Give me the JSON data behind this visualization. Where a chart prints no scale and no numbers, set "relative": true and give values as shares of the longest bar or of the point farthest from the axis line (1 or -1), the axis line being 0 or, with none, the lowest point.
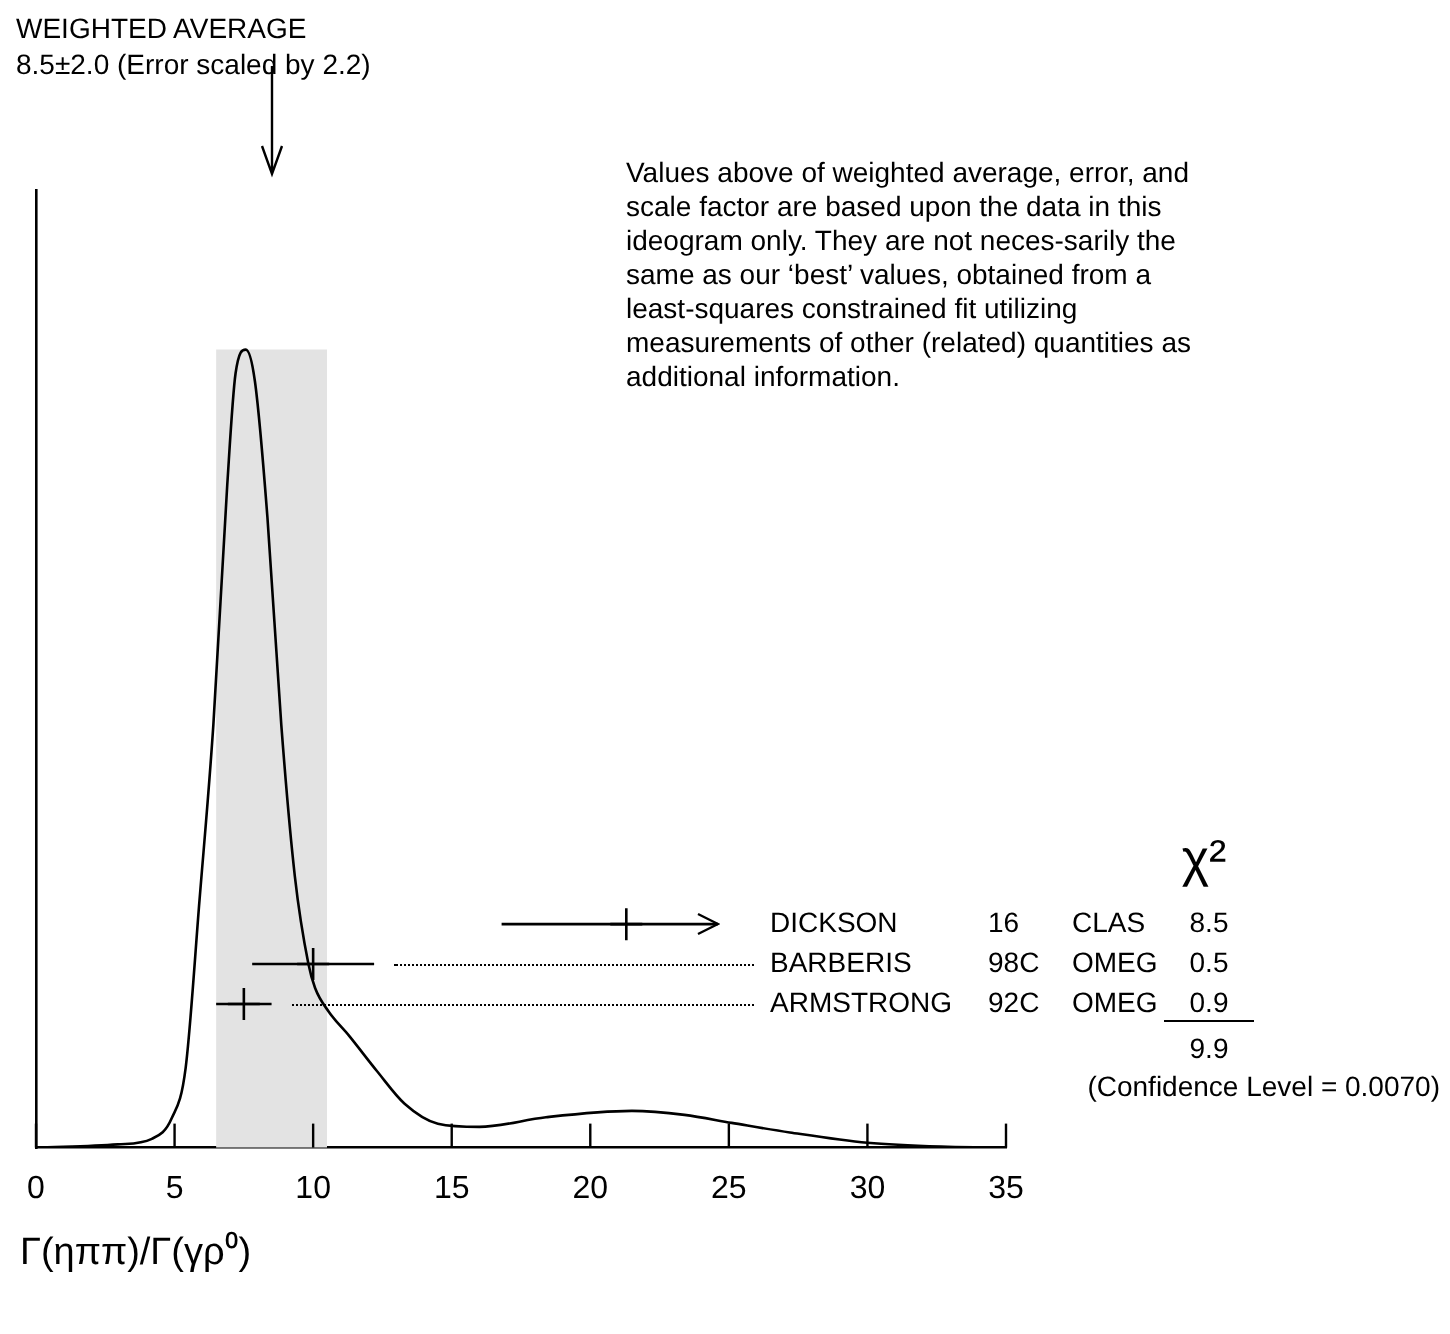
{
  "chart_data": {
    "type": "line",
    "title": "WEIGHTED AVERAGE",
    "subtitle": "8.5±2.0 (Error scaled by 2.2)",
    "xlabel": "Γ(ηππ)/Γ(γρ⁰)",
    "relative": true,
    "xlim": [
      0,
      35
    ],
    "xticks": [
      0,
      5,
      10,
      15,
      20,
      25,
      30,
      35
    ],
    "bands": [
      {
        "axis": "x",
        "from": 6.5,
        "to": 10.5,
        "color": "#e3e3e3"
      }
    ],
    "series": [
      {
        "color": "#000000",
        "x": [
          0,
          2.95,
          4.18,
          4.9,
          5.4,
          5.9,
          6.4,
          6.9,
          7.2,
          7.57,
          7.9,
          8.35,
          8.85,
          9.34,
          9.83,
          10.07,
          10.57,
          11.3,
          12.3,
          13.3,
          14.5,
          16.0,
          18.4,
          21.5,
          23.4,
          25.1,
          27.2,
          30,
          32.9,
          35
        ],
        "values": [
          0,
          0.004,
          0.011,
          0.037,
          0.1,
          0.31,
          0.53,
          0.83,
          0.97,
          1,
          0.96,
          0.79,
          0.53,
          0.34,
          0.23,
          0.2,
          0.17,
          0.14,
          0.096,
          0.055,
          0.03,
          0.026,
          0.038,
          0.046,
          0.041,
          0.031,
          0.019,
          0.006,
          0.001,
          0
        ]
      },
      {
        "type": "scatter",
        "name": "DICKSON",
        "color": "#000000",
        "x": [
          21.3
        ],
        "values": [
          0.28
        ],
        "marker": "cross",
        "xerrors": [
          [
            16.8,
            24.6
          ]
        ]
      },
      {
        "type": "scatter",
        "name": "BARBERIS",
        "color": "#000000",
        "x": [
          10.0
        ],
        "values": [
          0.23
        ],
        "marker": "cross",
        "xerrors": [
          2.2
        ]
      },
      {
        "type": "scatter",
        "name": "ARMSTRONG",
        "color": "#000000",
        "x": [
          7.5
        ],
        "values": [
          0.18
        ],
        "marker": "cross",
        "xerrors": [
          1.0
        ]
      }
    ],
    "annotations": [
      "Values above of weighted average, error, and scale factor are based upon the data in this ideogram only.  They are not neces-sarily the same as our ‘best’ values, obtained from a least-squares constrained fit utilizing measurements of other (related) quantities as additional information.",
      "χ²",
      "16",
      "CLAS",
      "8.5",
      "98C",
      "OMEG",
      "0.5",
      "92C",
      "OMEG",
      "0.9",
      "9.9",
      "(Confidence Level = 0.0070)"
    ]
  }
}
